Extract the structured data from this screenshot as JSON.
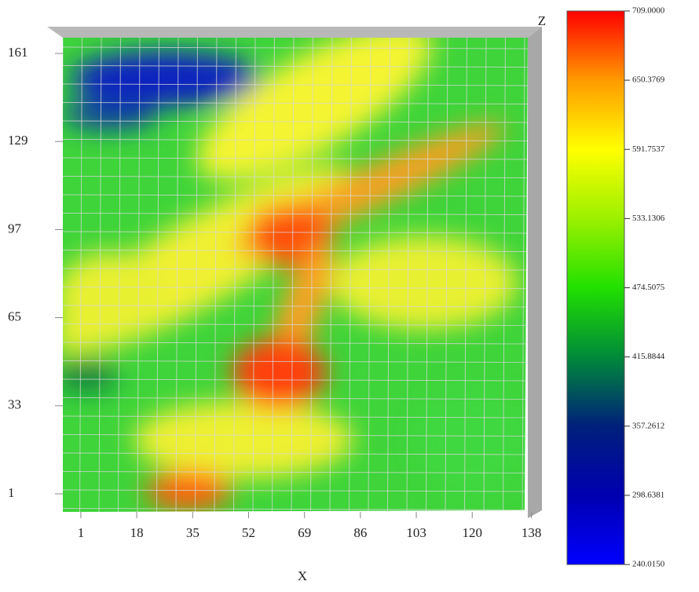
{
  "chart_data": {
    "type": "surface",
    "x_label": "X",
    "z_label": "Z",
    "xlim": [
      -4,
      140
    ],
    "xticks": [
      1,
      18,
      35,
      52,
      69,
      86,
      103,
      120,
      138
    ],
    "ylim": [
      -5,
      167
    ],
    "yticks": [
      1,
      33,
      65,
      97,
      129,
      161
    ],
    "colorbar": {
      "lim": [
        240.015,
        709
      ],
      "ticks": [
        {
          "value": 709,
          "label": "709.0000"
        },
        {
          "value": 650.3769,
          "label": "650.3769"
        },
        {
          "value": 591.7537,
          "label": "591.7537"
        },
        {
          "value": 533.1306,
          "label": "533.1306"
        },
        {
          "value": 474.5075,
          "label": "474.5075"
        },
        {
          "value": 415.8844,
          "label": "415.8844"
        },
        {
          "value": 357.2612,
          "label": "357.2612"
        },
        {
          "value": 298.6381,
          "label": "298.6381"
        },
        {
          "value": 240.015,
          "label": "240.0150"
        }
      ],
      "colors": [
        "#0000ff",
        "#0000b0",
        "#00207a",
        "#008a3a",
        "#22e000",
        "#9cf000",
        "#ffff00",
        "#ff9a00",
        "#ff0000"
      ]
    }
  }
}
